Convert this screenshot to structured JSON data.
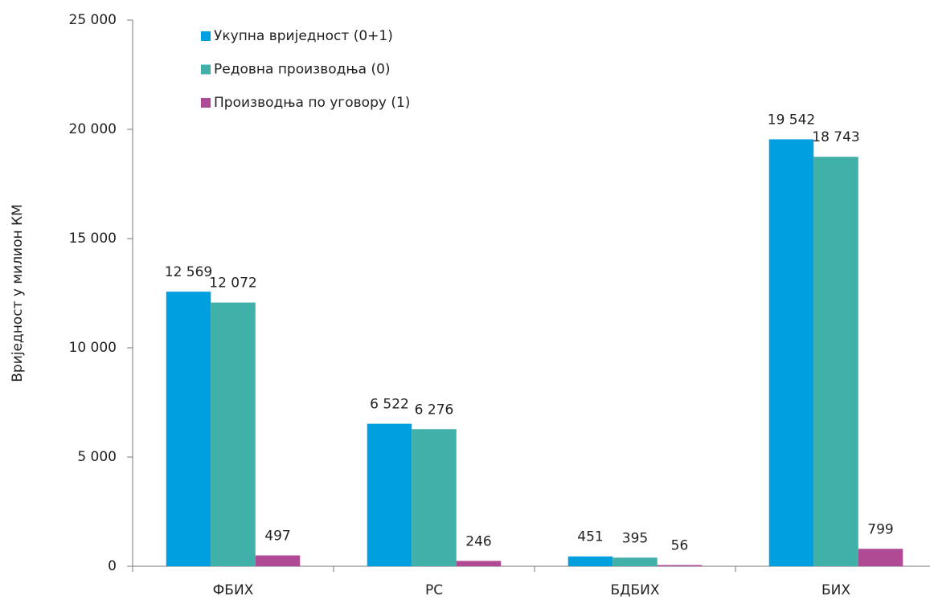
{
  "chart_data": {
    "type": "bar",
    "y_label": "Вриједност у милион КМ",
    "categories": [
      "ФБИХ",
      "РС",
      "БДБИХ",
      "БИХ"
    ],
    "series": [
      {
        "name": "Укупна вриједност (0+1)",
        "color": "#009fe0",
        "values": [
          12569,
          6522,
          451,
          19542
        ],
        "value_labels": [
          "12 569",
          "6 522",
          "451",
          "19 542"
        ]
      },
      {
        "name": "Редовна производња (0)",
        "color": "#41b0a9",
        "values": [
          12072,
          6276,
          395,
          18743
        ],
        "value_labels": [
          "12 072",
          "6 276",
          "395",
          "18 743"
        ]
      },
      {
        "name": "Производња по уговору (1)",
        "color": "#b04a94",
        "values": [
          497,
          246,
          56,
          799
        ],
        "value_labels": [
          "497",
          "246",
          "56",
          "799"
        ]
      }
    ],
    "ylim": [
      0,
      25000
    ],
    "yticks": [
      0,
      {
        "value": 5000,
        "label": "5 000"
      },
      {
        "value": 10000,
        "label": "10 000"
      },
      {
        "value": 15000,
        "label": "15 000"
      },
      {
        "value": 20000,
        "label": "20 000"
      },
      {
        "value": 25000,
        "label": "25 000"
      }
    ],
    "grid": false
  }
}
